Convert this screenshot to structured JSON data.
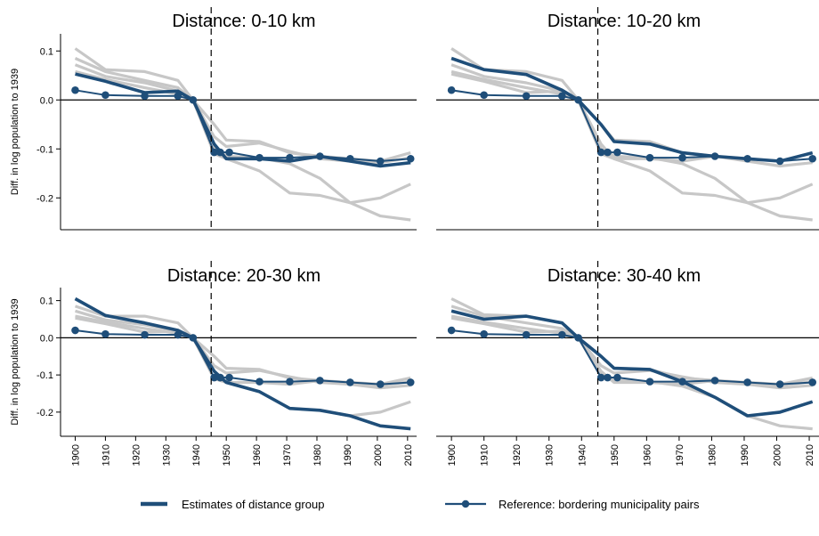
{
  "colors": {
    "estimate": "#1f4e79",
    "reference": "#1f4e79",
    "placebo": "#c7c7c7",
    "axis": "#000000"
  },
  "legend": {
    "estimate_label": "Estimates of distance group",
    "reference_label": "Reference: bordering municipality pairs"
  },
  "chart_data": [
    {
      "type": "line",
      "title": "Distance: 0-10 km",
      "ylabel": "Diff. in log population to 1939",
      "xlabel": "",
      "ylim": [
        -0.265,
        0.135
      ],
      "xlim": [
        1897.5,
        2013
      ],
      "yticks": [
        0.1,
        0.0,
        -0.1,
        -0.2
      ],
      "ytick_labels": [
        "0.1",
        "0.0",
        "-0.1",
        "-0.2"
      ],
      "xticks": [
        1900,
        1910,
        1920,
        1930,
        1940,
        1950,
        1960,
        1970,
        1980,
        1990,
        2000,
        2010
      ],
      "vline_x": 1945,
      "show_y_axis": true,
      "show_x_ticks": false,
      "placebo_series": [
        {
          "x": [
            1900,
            1910,
            1923,
            1934,
            1939,
            1946,
            1950,
            1961,
            1971,
            1981,
            1991,
            2001,
            2011
          ],
          "y": [
            0.105,
            0.062,
            0.058,
            0.04,
            0.0,
            -0.05,
            -0.082,
            -0.085,
            -0.108,
            -0.115,
            -0.12,
            -0.125,
            -0.108
          ]
        },
        {
          "x": [
            1900,
            1910,
            1923,
            1934,
            1939,
            1946,
            1950,
            1961,
            1971,
            1981,
            1991,
            2001,
            2011
          ],
          "y": [
            0.085,
            0.058,
            0.04,
            0.025,
            0.0,
            -0.075,
            -0.095,
            -0.088,
            -0.105,
            -0.12,
            -0.125,
            -0.128,
            -0.118
          ]
        },
        {
          "x": [
            1900,
            1910,
            1923,
            1934,
            1939,
            1946,
            1950,
            1961,
            1971,
            1981,
            1991,
            2001,
            2011
          ],
          "y": [
            0.072,
            0.048,
            0.035,
            0.018,
            0.0,
            -0.11,
            -0.12,
            -0.145,
            -0.19,
            -0.195,
            -0.21,
            -0.2,
            -0.172
          ]
        },
        {
          "x": [
            1900,
            1910,
            1923,
            1934,
            1939,
            1946,
            1950,
            1961,
            1971,
            1981,
            1991,
            2001,
            2011
          ],
          "y": [
            0.058,
            0.042,
            0.025,
            0.012,
            0.0,
            -0.1,
            -0.115,
            -0.118,
            -0.13,
            -0.16,
            -0.21,
            -0.237,
            -0.245
          ]
        }
      ],
      "estimate": {
        "x": [
          1900,
          1910,
          1923,
          1934,
          1939,
          1946,
          1950,
          1961,
          1971,
          1981,
          1991,
          2001,
          2011
        ],
        "y": [
          0.053,
          0.038,
          0.015,
          0.018,
          0.0,
          -0.09,
          -0.12,
          -0.12,
          -0.125,
          -0.115,
          -0.125,
          -0.135,
          -0.128
        ]
      },
      "reference": {
        "x": [
          1900,
          1910,
          1923,
          1934,
          1939,
          1946,
          1948,
          1951,
          1961,
          1971,
          1981,
          1991,
          2001,
          2011
        ],
        "y": [
          0.02,
          0.01,
          0.008,
          0.008,
          0.0,
          -0.107,
          -0.107,
          -0.107,
          -0.118,
          -0.118,
          -0.115,
          -0.12,
          -0.125,
          -0.12
        ]
      }
    },
    {
      "type": "line",
      "title": "Distance: 10-20 km",
      "ylabel": "",
      "xlabel": "",
      "ylim": [
        -0.265,
        0.135
      ],
      "xlim": [
        1897.5,
        2013
      ],
      "yticks": [
        0.1,
        0.0,
        -0.1,
        -0.2
      ],
      "ytick_labels": [],
      "xticks": [
        1900,
        1910,
        1920,
        1930,
        1940,
        1950,
        1960,
        1970,
        1980,
        1990,
        2000,
        2010
      ],
      "vline_x": 1945,
      "show_y_axis": false,
      "show_x_ticks": false,
      "placebo_series": [
        {
          "x": [
            1900,
            1910,
            1923,
            1934,
            1939,
            1946,
            1950,
            1961,
            1971,
            1981,
            1991,
            2001,
            2011
          ],
          "y": [
            0.105,
            0.062,
            0.058,
            0.04,
            0.0,
            -0.05,
            -0.082,
            -0.085,
            -0.108,
            -0.115,
            -0.12,
            -0.125,
            -0.108
          ]
        },
        {
          "x": [
            1900,
            1910,
            1923,
            1934,
            1939,
            1946,
            1950,
            1961,
            1971,
            1981,
            1991,
            2001,
            2011
          ],
          "y": [
            0.072,
            0.048,
            0.035,
            0.018,
            0.0,
            -0.11,
            -0.12,
            -0.145,
            -0.19,
            -0.195,
            -0.21,
            -0.2,
            -0.172
          ]
        },
        {
          "x": [
            1900,
            1910,
            1923,
            1934,
            1939,
            1946,
            1950,
            1961,
            1971,
            1981,
            1991,
            2001,
            2011
          ],
          "y": [
            0.058,
            0.042,
            0.025,
            0.012,
            0.0,
            -0.1,
            -0.115,
            -0.118,
            -0.13,
            -0.16,
            -0.21,
            -0.237,
            -0.245
          ]
        },
        {
          "x": [
            1900,
            1910,
            1923,
            1934,
            1939,
            1946,
            1950,
            1961,
            1971,
            1981,
            1991,
            2001,
            2011
          ],
          "y": [
            0.053,
            0.038,
            0.015,
            0.018,
            0.0,
            -0.09,
            -0.12,
            -0.12,
            -0.125,
            -0.115,
            -0.125,
            -0.135,
            -0.128
          ]
        }
      ],
      "estimate": {
        "x": [
          1900,
          1910,
          1923,
          1934,
          1939,
          1946,
          1950,
          1961,
          1971,
          1981,
          1991,
          2001,
          2011
        ],
        "y": [
          0.085,
          0.062,
          0.052,
          0.02,
          0.0,
          -0.05,
          -0.085,
          -0.09,
          -0.108,
          -0.115,
          -0.12,
          -0.125,
          -0.108
        ]
      },
      "reference": {
        "x": [
          1900,
          1910,
          1923,
          1934,
          1939,
          1946,
          1948,
          1951,
          1961,
          1971,
          1981,
          1991,
          2001,
          2011
        ],
        "y": [
          0.02,
          0.01,
          0.008,
          0.008,
          0.0,
          -0.107,
          -0.107,
          -0.107,
          -0.118,
          -0.118,
          -0.115,
          -0.12,
          -0.125,
          -0.12
        ]
      }
    },
    {
      "type": "line",
      "title": "Distance: 20-30 km",
      "ylabel": "Diff. in log population to 1939",
      "xlabel": "",
      "ylim": [
        -0.265,
        0.135
      ],
      "xlim": [
        1897.5,
        2013
      ],
      "yticks": [
        0.1,
        0.0,
        -0.1,
        -0.2
      ],
      "ytick_labels": [
        "0.1",
        "0.0",
        "-0.1",
        "-0.2"
      ],
      "xticks": [
        1900,
        1910,
        1920,
        1930,
        1940,
        1950,
        1960,
        1970,
        1980,
        1990,
        2000,
        2010
      ],
      "xtick_labels": [
        "1900",
        "1910",
        "1920",
        "1930",
        "1940",
        "1950",
        "1960",
        "1970",
        "1980",
        "1990",
        "2000",
        "2010"
      ],
      "vline_x": 1945,
      "show_y_axis": true,
      "show_x_ticks": true,
      "placebo_series": [
        {
          "x": [
            1900,
            1910,
            1923,
            1934,
            1939,
            1946,
            1950,
            1961,
            1971,
            1981,
            1991,
            2001,
            2011
          ],
          "y": [
            0.085,
            0.058,
            0.058,
            0.04,
            0.0,
            -0.05,
            -0.082,
            -0.085,
            -0.108,
            -0.115,
            -0.12,
            -0.125,
            -0.108
          ]
        },
        {
          "x": [
            1900,
            1910,
            1923,
            1934,
            1939,
            1946,
            1950,
            1961,
            1971,
            1981,
            1991,
            2001,
            2011
          ],
          "y": [
            0.072,
            0.048,
            0.035,
            0.018,
            0.0,
            -0.11,
            -0.12,
            -0.145,
            -0.19,
            -0.195,
            -0.21,
            -0.2,
            -0.172
          ]
        },
        {
          "x": [
            1900,
            1910,
            1923,
            1934,
            1939,
            1946,
            1950,
            1961,
            1971,
            1981,
            1991,
            2001,
            2011
          ],
          "y": [
            0.058,
            0.042,
            0.025,
            0.012,
            0.0,
            -0.075,
            -0.095,
            -0.088,
            -0.105,
            -0.12,
            -0.125,
            -0.128,
            -0.118
          ]
        },
        {
          "x": [
            1900,
            1910,
            1923,
            1934,
            1939,
            1946,
            1950,
            1961,
            1971,
            1981,
            1991,
            2001,
            2011
          ],
          "y": [
            0.053,
            0.038,
            0.015,
            0.018,
            0.0,
            -0.09,
            -0.12,
            -0.12,
            -0.125,
            -0.115,
            -0.125,
            -0.135,
            -0.128
          ]
        }
      ],
      "estimate": {
        "x": [
          1900,
          1910,
          1923,
          1934,
          1939,
          1946,
          1950,
          1961,
          1971,
          1981,
          1991,
          2001,
          2011
        ],
        "y": [
          0.105,
          0.06,
          0.04,
          0.02,
          0.0,
          -0.09,
          -0.12,
          -0.145,
          -0.19,
          -0.195,
          -0.21,
          -0.237,
          -0.245
        ]
      },
      "reference": {
        "x": [
          1900,
          1910,
          1923,
          1934,
          1939,
          1946,
          1948,
          1951,
          1961,
          1971,
          1981,
          1991,
          2001,
          2011
        ],
        "y": [
          0.02,
          0.01,
          0.008,
          0.008,
          0.0,
          -0.107,
          -0.107,
          -0.107,
          -0.118,
          -0.118,
          -0.115,
          -0.12,
          -0.125,
          -0.12
        ]
      }
    },
    {
      "type": "line",
      "title": "Distance: 30-40 km",
      "ylabel": "",
      "xlabel": "",
      "ylim": [
        -0.265,
        0.135
      ],
      "xlim": [
        1897.5,
        2013
      ],
      "yticks": [
        0.1,
        0.0,
        -0.1,
        -0.2
      ],
      "ytick_labels": [],
      "xticks": [
        1900,
        1910,
        1920,
        1930,
        1940,
        1950,
        1960,
        1970,
        1980,
        1990,
        2000,
        2010
      ],
      "xtick_labels": [
        "1900",
        "1910",
        "1920",
        "1930",
        "1940",
        "1950",
        "1960",
        "1970",
        "1980",
        "1990",
        "2000",
        "2010"
      ],
      "vline_x": 1945,
      "show_y_axis": false,
      "show_x_ticks": true,
      "placebo_series": [
        {
          "x": [
            1900,
            1910,
            1923,
            1934,
            1939,
            1946,
            1950,
            1961,
            1971,
            1981,
            1991,
            2001,
            2011
          ],
          "y": [
            0.105,
            0.062,
            0.058,
            0.04,
            0.0,
            -0.05,
            -0.082,
            -0.085,
            -0.108,
            -0.115,
            -0.12,
            -0.125,
            -0.108
          ]
        },
        {
          "x": [
            1900,
            1910,
            1923,
            1934,
            1939,
            1946,
            1950,
            1961,
            1971,
            1981,
            1991,
            2001,
            2011
          ],
          "y": [
            0.085,
            0.058,
            0.04,
            0.025,
            0.0,
            -0.075,
            -0.095,
            -0.088,
            -0.105,
            -0.12,
            -0.125,
            -0.128,
            -0.118
          ]
        },
        {
          "x": [
            1900,
            1910,
            1923,
            1934,
            1939,
            1946,
            1950,
            1961,
            1971,
            1981,
            1991,
            2001,
            2011
          ],
          "y": [
            0.058,
            0.042,
            0.025,
            0.012,
            0.0,
            -0.1,
            -0.115,
            -0.118,
            -0.13,
            -0.16,
            -0.21,
            -0.237,
            -0.245
          ]
        },
        {
          "x": [
            1900,
            1910,
            1923,
            1934,
            1939,
            1946,
            1950,
            1961,
            1971,
            1981,
            1991,
            2001,
            2011
          ],
          "y": [
            0.053,
            0.038,
            0.015,
            0.018,
            0.0,
            -0.09,
            -0.12,
            -0.12,
            -0.125,
            -0.115,
            -0.125,
            -0.135,
            -0.128
          ]
        }
      ],
      "estimate": {
        "x": [
          1900,
          1910,
          1923,
          1934,
          1939,
          1946,
          1950,
          1961,
          1971,
          1981,
          1991,
          2001,
          2011
        ],
        "y": [
          0.072,
          0.05,
          0.058,
          0.04,
          0.0,
          -0.05,
          -0.082,
          -0.085,
          -0.118,
          -0.16,
          -0.21,
          -0.2,
          -0.172
        ]
      },
      "reference": {
        "x": [
          1900,
          1910,
          1923,
          1934,
          1939,
          1946,
          1948,
          1951,
          1961,
          1971,
          1981,
          1991,
          2001,
          2011
        ],
        "y": [
          0.02,
          0.01,
          0.008,
          0.008,
          0.0,
          -0.107,
          -0.107,
          -0.107,
          -0.118,
          -0.118,
          -0.115,
          -0.12,
          -0.125,
          -0.12
        ]
      }
    }
  ]
}
